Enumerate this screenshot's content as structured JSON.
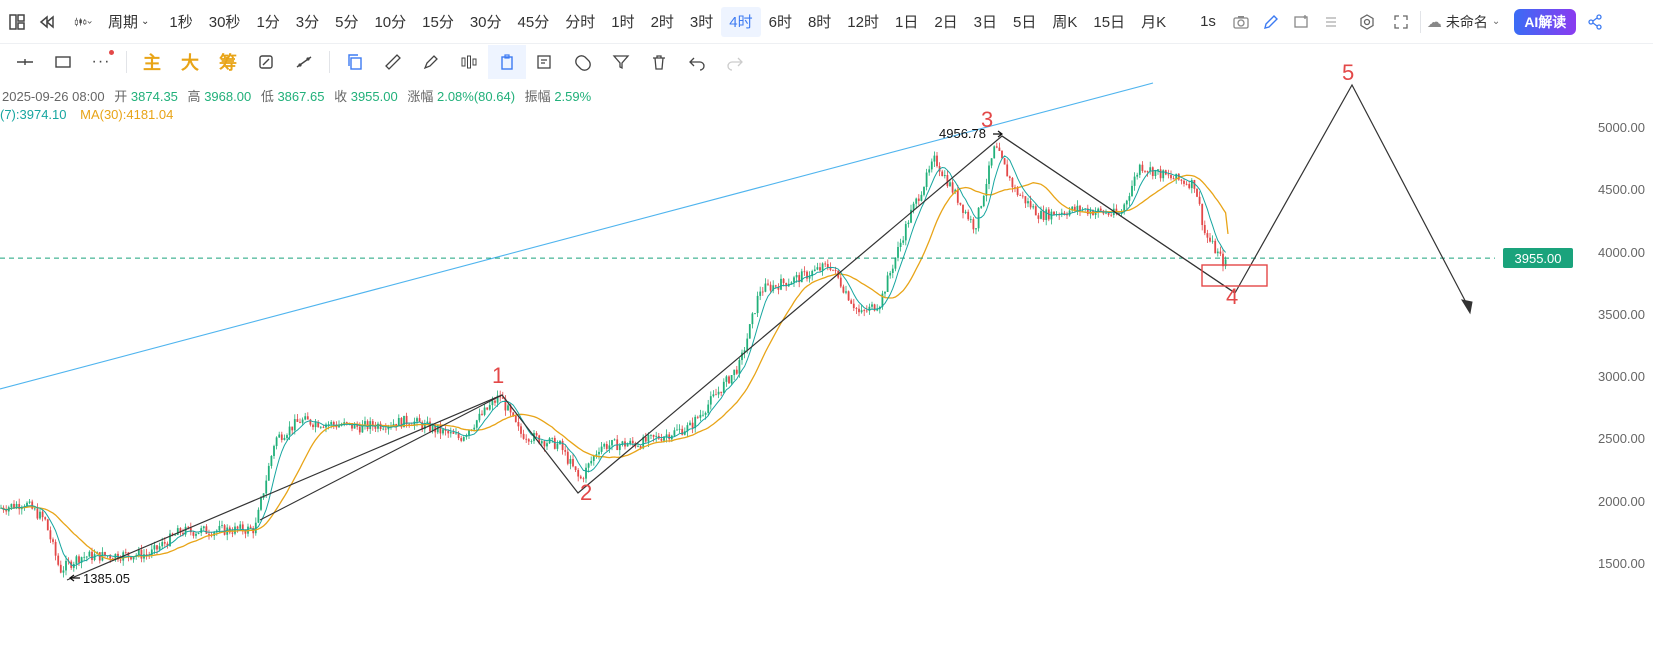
{
  "toolbar": {
    "period_label": "周期",
    "periods": [
      "1秒",
      "30秒",
      "1分",
      "3分",
      "5分",
      "10分",
      "15分",
      "30分",
      "45分",
      "分时",
      "1时",
      "2时",
      "3时",
      "4时",
      "6时",
      "8时",
      "12时",
      "1日",
      "2日",
      "3日",
      "5日",
      "周K",
      "15日",
      "月K"
    ],
    "active_period": "4时",
    "speed_label": "1s",
    "doc_name": "未命名",
    "ai_label": "AI解读"
  },
  "draw_toolbar": {
    "text_tools": [
      "主",
      "大",
      "筹"
    ]
  },
  "ohlc": {
    "date": "2025-09-26 08:00",
    "open_label": "开",
    "open": "3874.35",
    "high_label": "高",
    "high": "3968.00",
    "low_label": "低",
    "low": "3867.65",
    "close_label": "收",
    "close": "3955.00",
    "change_label": "涨幅",
    "change": "2.08%(80.64)",
    "amplitude_label": "振幅",
    "amplitude": "2.59%"
  },
  "ma": {
    "ma7_text": "(7):3974.10",
    "ma30_text": "MA(30):4181.04"
  },
  "price_axis": {
    "labels": [
      "5000.00",
      "4500.00",
      "4000.00",
      "3500.00",
      "3000.00",
      "2500.00",
      "2000.00",
      "1500.00"
    ],
    "last_price": "3955.00"
  },
  "annotations": {
    "waves": [
      "1",
      "2",
      "3",
      "4",
      "5"
    ],
    "high_note": "4956.78",
    "low_note": "1385.05"
  },
  "colors": {
    "up": "#21b07a",
    "down": "#e34848",
    "ma7": "#17a6a0",
    "ma30": "#e8a417",
    "trend": "#4fb4ee",
    "wave": "#e34848"
  },
  "chart_data": {
    "type": "candlestick",
    "y_axis_range": [
      1380,
      5200
    ],
    "last_price": 3955.0,
    "swing_points": [
      {
        "label": "1",
        "price": 2860
      },
      {
        "label": "2",
        "price": 2110
      },
      {
        "label": "3",
        "price": 4956.78
      },
      {
        "label": "4",
        "price": 3720
      },
      {
        "label": "5",
        "price": 5340
      }
    ],
    "low_point": 1385.05,
    "high_point": 4956.78
  }
}
